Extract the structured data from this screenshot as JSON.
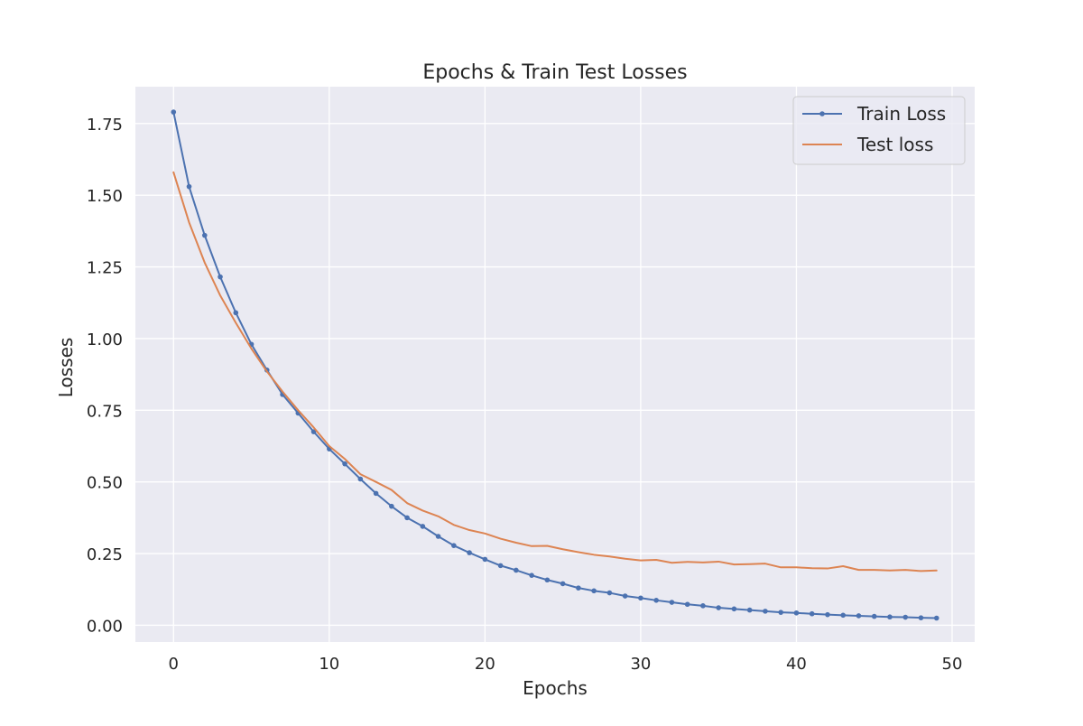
{
  "chart_data": {
    "type": "line",
    "title": "Epochs & Train Test Losses",
    "xlabel": "Epochs",
    "ylabel": "Losses",
    "xlim": [
      -2.45,
      51.45
    ],
    "ylim": [
      -0.0585,
      1.8785
    ],
    "xticks": [
      0,
      10,
      20,
      30,
      40,
      50
    ],
    "xtick_labels": [
      "0",
      "10",
      "20",
      "30",
      "40",
      "50"
    ],
    "yticks": [
      0.0,
      0.25,
      0.5,
      0.75,
      1.0,
      1.25,
      1.5,
      1.75
    ],
    "ytick_labels": [
      "0.00",
      "0.25",
      "0.50",
      "0.75",
      "1.00",
      "1.25",
      "1.50",
      "1.75"
    ],
    "grid": true,
    "legend_position": "top-right",
    "x": [
      0,
      1,
      2,
      3,
      4,
      5,
      6,
      7,
      8,
      9,
      10,
      11,
      12,
      13,
      14,
      15,
      16,
      17,
      18,
      19,
      20,
      21,
      22,
      23,
      24,
      25,
      26,
      27,
      28,
      29,
      30,
      31,
      32,
      33,
      34,
      35,
      36,
      37,
      38,
      39,
      40,
      41,
      42,
      43,
      44,
      45,
      46,
      47,
      48,
      49
    ],
    "series": [
      {
        "name": "Train Loss",
        "color": "#4c72b0",
        "marker": "dot",
        "values": [
          1.79,
          1.53,
          1.36,
          1.215,
          1.09,
          0.98,
          0.89,
          0.805,
          0.74,
          0.675,
          0.615,
          0.563,
          0.51,
          0.46,
          0.415,
          0.375,
          0.345,
          0.31,
          0.278,
          0.253,
          0.23,
          0.208,
          0.192,
          0.174,
          0.158,
          0.145,
          0.13,
          0.12,
          0.113,
          0.102,
          0.095,
          0.087,
          0.08,
          0.073,
          0.068,
          0.061,
          0.057,
          0.053,
          0.049,
          0.045,
          0.043,
          0.04,
          0.037,
          0.035,
          0.033,
          0.031,
          0.029,
          0.028,
          0.026,
          0.025
        ]
      },
      {
        "name": "Test loss",
        "color": "#dd8452",
        "marker": "none",
        "values": [
          1.58,
          1.405,
          1.265,
          1.15,
          1.055,
          0.965,
          0.885,
          0.815,
          0.75,
          0.69,
          0.625,
          0.58,
          0.527,
          0.5,
          0.472,
          0.426,
          0.4,
          0.38,
          0.35,
          0.332,
          0.32,
          0.302,
          0.288,
          0.276,
          0.277,
          0.265,
          0.255,
          0.246,
          0.24,
          0.232,
          0.226,
          0.228,
          0.218,
          0.221,
          0.219,
          0.222,
          0.212,
          0.213,
          0.215,
          0.202,
          0.202,
          0.199,
          0.198,
          0.206,
          0.193,
          0.193,
          0.191,
          0.193,
          0.189,
          0.191
        ]
      }
    ]
  }
}
